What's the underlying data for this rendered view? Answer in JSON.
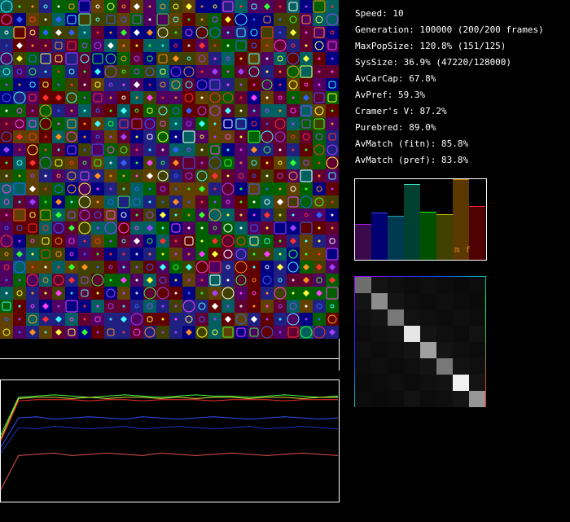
{
  "stats": [
    "Speed: 10",
    "Generation: 100000 (200/200 frames)",
    "MaxPopSize: 120.8% (151/125)",
    "SysSize: 36.9% (47220/128000)",
    "AvCarCap: 67.8%",
    "AvPref: 59.3%",
    "Cramer's V: 87.2%",
    "Purebred: 89.0%",
    "AvMatch (fitn): 85.8%",
    "AvMatch (pref): 83.8%"
  ],
  "histogram": {
    "label": "m f",
    "values": [
      44,
      58,
      54,
      93,
      59,
      56,
      99,
      66
    ],
    "colors": [
      "#3a0a4a",
      "#000070",
      "#003a50",
      "#004030",
      "#005000",
      "#404000",
      "#5a3800",
      "#500000"
    ],
    "tops": [
      "#a020f0",
      "#4040ff",
      "#20a0c0",
      "#40e0c0",
      "#00ff00",
      "#c0c000",
      "#c08000",
      "#ff2020"
    ]
  },
  "matrix": {
    "values": [
      [
        110,
        20,
        15,
        12,
        15,
        12,
        10,
        12
      ],
      [
        20,
        140,
        20,
        15,
        12,
        15,
        12,
        10
      ],
      [
        15,
        20,
        120,
        18,
        15,
        12,
        15,
        12
      ],
      [
        12,
        15,
        18,
        230,
        20,
        15,
        12,
        18
      ],
      [
        15,
        12,
        15,
        20,
        160,
        20,
        15,
        12
      ],
      [
        12,
        15,
        12,
        15,
        20,
        120,
        18,
        15
      ],
      [
        10,
        12,
        15,
        12,
        15,
        18,
        240,
        20
      ],
      [
        12,
        10,
        12,
        18,
        12,
        15,
        20,
        150
      ]
    ]
  },
  "trace": {
    "ylim": [
      0,
      100
    ],
    "series": [
      {
        "color": "#40ff40",
        "values": [
          55,
          86,
          87,
          88,
          87,
          86,
          87,
          88,
          87,
          86,
          87,
          88,
          87,
          87,
          86,
          87,
          88,
          87,
          86,
          87
        ]
      },
      {
        "color": "#e0e040",
        "values": [
          52,
          85,
          86,
          86,
          85,
          86,
          85,
          86,
          86,
          85,
          86,
          85,
          86,
          86,
          85,
          86,
          86,
          85,
          86,
          86
        ]
      },
      {
        "color": "#ff3030",
        "values": [
          50,
          83,
          84,
          84,
          84,
          83,
          84,
          84,
          83,
          84,
          84,
          84,
          83,
          84,
          84,
          84,
          83,
          84,
          84,
          84
        ]
      },
      {
        "color": "#3050ff",
        "values": [
          45,
          69,
          70,
          68,
          69,
          70,
          69,
          68,
          70,
          69,
          68,
          69,
          70,
          69,
          68,
          69,
          70,
          69,
          68,
          69
        ]
      },
      {
        "color": "#2030c0",
        "values": [
          40,
          61,
          60,
          62,
          61,
          60,
          61,
          62,
          60,
          61,
          62,
          61,
          60,
          61,
          62,
          60,
          61,
          62,
          61,
          60
        ]
      },
      {
        "color": "#e05050",
        "values": [
          10,
          38,
          39,
          40,
          38,
          39,
          40,
          39,
          38,
          40,
          39,
          38,
          39,
          40,
          39,
          38,
          39,
          40,
          39,
          38
        ]
      }
    ]
  }
}
